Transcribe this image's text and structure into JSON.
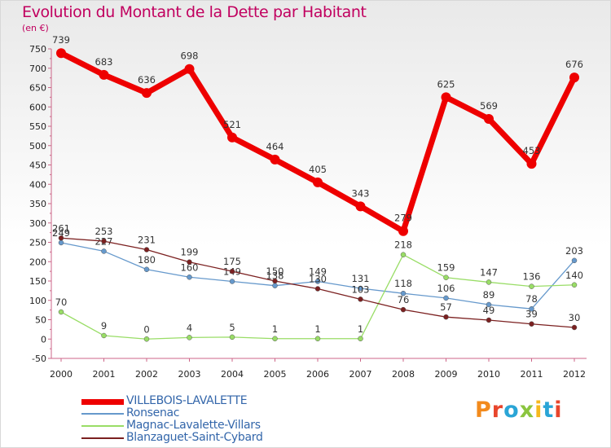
{
  "chart_data": {
    "type": "line",
    "title": "Evolution du Montant de la Dette par Habitant",
    "subtitle": "(en €)",
    "x": [
      "2000",
      "2001",
      "2002",
      "2003",
      "2004",
      "2005",
      "2006",
      "2007",
      "2008",
      "2009",
      "2010",
      "2011",
      "2012"
    ],
    "ylim": [
      -50,
      750
    ],
    "yticks": [
      -50,
      0,
      50,
      100,
      150,
      200,
      250,
      300,
      350,
      400,
      450,
      500,
      550,
      600,
      650,
      700,
      750
    ],
    "grid": false,
    "legend": "bottom-left",
    "series": [
      {
        "name": "VILLEBOIS-LAVALETTE",
        "color": "#ee0000",
        "values": [
          739,
          683,
          636,
          698,
          521,
          464,
          405,
          343,
          279,
          625,
          569,
          453,
          676
        ]
      },
      {
        "name": "Ronsenac",
        "color": "#6699cc",
        "values": [
          249,
          227,
          180,
          160,
          149,
          138,
          149,
          131,
          118,
          106,
          89,
          78,
          203
        ]
      },
      {
        "name": "Magnac-Lavalette-Villars",
        "color": "#99dd66",
        "values": [
          70,
          9,
          0,
          4,
          5,
          1,
          1,
          1,
          218,
          159,
          147,
          136,
          140
        ]
      },
      {
        "name": "Blanzaguet-Saint-Cybard",
        "color": "#7b2020",
        "values": [
          261,
          253,
          231,
          199,
          175,
          150,
          130,
          103,
          76,
          57,
          49,
          39,
          30
        ]
      }
    ]
  },
  "logo": {
    "letters": [
      "P",
      "r",
      "o",
      "x",
      "i",
      "t",
      "i"
    ]
  }
}
